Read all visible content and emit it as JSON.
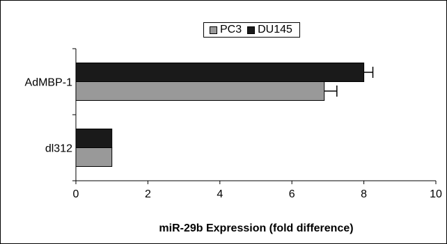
{
  "chart_data": {
    "type": "bar",
    "orientation": "horizontal",
    "categories": [
      "AdMBP-1",
      "dl312"
    ],
    "series": [
      {
        "name": "PC3",
        "values": [
          6.9,
          1.0
        ],
        "errors": [
          0.35,
          0
        ],
        "color": "#999999"
      },
      {
        "name": "DU145",
        "values": [
          8.0,
          1.0
        ],
        "errors": [
          0.25,
          0
        ],
        "color": "#1a1a1a"
      }
    ],
    "xlabel": "miR-29b Expression (fold difference)",
    "ylabel": "",
    "xlim": [
      0,
      10
    ],
    "xticks": [
      0,
      2,
      4,
      6,
      8,
      10
    ],
    "grid": false,
    "legend_position": "top"
  }
}
